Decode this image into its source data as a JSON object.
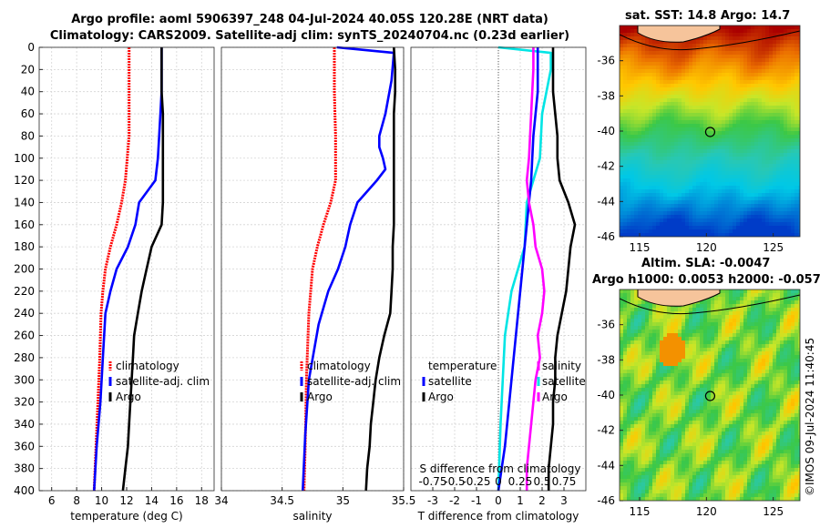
{
  "header": {
    "title_line1": "Argo profile: aoml 5906397_248 04-Jul-2024 40.05S 120.28E (NRT data)",
    "title_line2": "Climatology: CARS2009. Satellite-adj clim: synTS_20240704.nc (0.23d earlier)"
  },
  "colors": {
    "climatology": "#ff0000",
    "satellite": "#0000ff",
    "argo": "#000000",
    "s_climatology": "#ff00ff",
    "s_satellite": "#00e5e5"
  },
  "chart_data": [
    {
      "type": "line",
      "name": "temperature",
      "xlabel": "temperature (deg C)",
      "xlim": [
        5,
        19
      ],
      "ylim": [
        0,
        400
      ],
      "xticks": [
        6,
        8,
        10,
        12,
        14,
        16,
        18
      ],
      "yticks": [
        0,
        20,
        40,
        60,
        80,
        100,
        120,
        140,
        160,
        180,
        200,
        220,
        240,
        260,
        280,
        300,
        320,
        340,
        360,
        380,
        400
      ],
      "legend": [
        "climatology",
        "satellite-adj. clim",
        "Argo"
      ],
      "series": [
        {
          "name": "climatology",
          "color": "#ff0000",
          "depth": [
            0,
            40,
            80,
            120,
            140,
            160,
            180,
            200,
            220,
            240,
            280,
            320,
            360,
            400
          ],
          "values": [
            12.2,
            12.2,
            12.2,
            11.9,
            11.6,
            11.2,
            10.7,
            10.3,
            10.1,
            9.95,
            9.85,
            9.7,
            9.55,
            9.4
          ]
        },
        {
          "name": "satellite-adj. clim",
          "color": "#0000ff",
          "depth": [
            0,
            20,
            40,
            80,
            100,
            120,
            140,
            160,
            180,
            200,
            220,
            240,
            280,
            320,
            360,
            400
          ],
          "values": [
            14.8,
            14.8,
            14.8,
            14.6,
            14.5,
            14.3,
            13.0,
            12.7,
            12.1,
            11.2,
            10.7,
            10.3,
            10.1,
            9.9,
            9.6,
            9.4
          ]
        },
        {
          "name": "Argo",
          "color": "#000000",
          "depth": [
            0,
            20,
            40,
            60,
            80,
            100,
            120,
            140,
            160,
            180,
            200,
            220,
            240,
            260,
            280,
            300,
            320,
            340,
            360,
            380,
            400
          ],
          "values": [
            14.8,
            14.8,
            14.8,
            14.9,
            14.9,
            14.9,
            14.9,
            14.9,
            14.8,
            14.0,
            13.6,
            13.2,
            12.9,
            12.6,
            12.5,
            12.4,
            12.3,
            12.2,
            12.1,
            11.9,
            11.7
          ]
        }
      ]
    },
    {
      "type": "line",
      "name": "salinity",
      "xlabel": "salinity",
      "xlim": [
        34,
        35.5
      ],
      "ylim": [
        0,
        400
      ],
      "xticks": [
        34,
        34.5,
        35,
        35.5
      ],
      "xtick_labels": [
        "34",
        "34.5",
        "35",
        "35.5"
      ],
      "legend": [
        "climatology",
        "satellite-adj. clim",
        "Argo"
      ],
      "series": [
        {
          "name": "climatology",
          "color": "#ff0000",
          "depth": [
            0,
            40,
            80,
            120,
            140,
            160,
            180,
            200,
            240,
            300,
            360,
            400
          ],
          "values": [
            34.93,
            34.93,
            34.94,
            34.94,
            34.9,
            34.84,
            34.79,
            34.75,
            34.72,
            34.7,
            34.69,
            34.68
          ]
        },
        {
          "name": "satellite-adj. clim",
          "color": "#0000ff",
          "depth": [
            0,
            5,
            30,
            60,
            80,
            90,
            100,
            110,
            120,
            140,
            160,
            180,
            200,
            220,
            250,
            300,
            350,
            400
          ],
          "values": [
            34.95,
            35.42,
            35.4,
            35.35,
            35.3,
            35.3,
            35.33,
            35.35,
            35.28,
            35.12,
            35.06,
            35.02,
            34.96,
            34.88,
            34.8,
            34.72,
            34.69,
            34.67
          ]
        },
        {
          "name": "Argo",
          "color": "#000000",
          "depth": [
            0,
            20,
            40,
            60,
            80,
            100,
            120,
            140,
            160,
            180,
            200,
            220,
            240,
            260,
            280,
            300,
            320,
            340,
            360,
            380,
            400
          ],
          "values": [
            35.42,
            35.43,
            35.43,
            35.42,
            35.42,
            35.42,
            35.42,
            35.42,
            35.42,
            35.41,
            35.41,
            35.4,
            35.39,
            35.34,
            35.3,
            35.27,
            35.25,
            35.23,
            35.22,
            35.2,
            35.19
          ]
        }
      ]
    },
    {
      "type": "line",
      "name": "difference",
      "xlabel": "T difference from climatology",
      "xlabel_top": "S difference from climatology",
      "xlim": [
        -4,
        4
      ],
      "ylim": [
        0,
        400
      ],
      "xticks": [
        -3,
        -2,
        -1,
        0,
        1,
        2,
        3
      ],
      "xtick_labels": [
        "-3",
        "-2",
        "-1",
        "0",
        "1",
        "2",
        "3"
      ],
      "s_tick_labels": [
        "-0.75",
        "-0.5",
        "-0.25",
        "0",
        "0.25",
        "0.5",
        "0.75"
      ],
      "legend_t": [
        "temperature",
        "satellite",
        "Argo"
      ],
      "legend_s": [
        "salinity",
        "satellite",
        "Argo"
      ],
      "series": [
        {
          "name": "T satellite",
          "color": "#00e5e5",
          "depth": [
            0,
            5,
            20,
            60,
            100,
            140,
            180,
            220,
            260,
            300,
            340,
            400
          ],
          "values": [
            0.0,
            2.4,
            2.4,
            2.0,
            1.9,
            1.3,
            1.2,
            0.6,
            0.3,
            0.2,
            0.1,
            0.0
          ]
        },
        {
          "name": "T Argo",
          "color": "#000000",
          "depth": [
            0,
            20,
            40,
            60,
            80,
            100,
            120,
            140,
            160,
            180,
            200,
            220,
            240,
            260,
            280,
            300,
            320,
            340,
            360,
            380,
            400
          ],
          "values": [
            2.5,
            2.5,
            2.5,
            2.6,
            2.7,
            2.7,
            2.8,
            3.2,
            3.5,
            3.3,
            3.2,
            3.1,
            2.9,
            2.7,
            2.6,
            2.6,
            2.5,
            2.5,
            2.4,
            2.3,
            2.3
          ]
        },
        {
          "name": "S satellite",
          "color": "#0000ff",
          "depth": [
            0,
            40,
            80,
            120,
            160,
            200,
            240,
            300,
            360,
            400
          ],
          "values": [
            1.8,
            1.8,
            1.6,
            1.5,
            1.3,
            1.1,
            0.9,
            0.6,
            0.3,
            0.0
          ]
        },
        {
          "name": "S Argo",
          "color": "#ff00ff",
          "depth": [
            0,
            20,
            60,
            100,
            120,
            140,
            160,
            180,
            200,
            220,
            240,
            260,
            280,
            300,
            320,
            340,
            360,
            380,
            400
          ],
          "values": [
            1.6,
            1.6,
            1.5,
            1.4,
            1.3,
            1.4,
            1.6,
            1.7,
            2.0,
            2.1,
            2.0,
            1.8,
            1.9,
            1.7,
            1.6,
            1.5,
            1.4,
            1.3,
            1.3
          ]
        }
      ]
    },
    {
      "type": "heatmap",
      "name": "sst-map",
      "title": "sat. SST: 14.8 Argo: 14.7",
      "xlim": [
        113.5,
        127
      ],
      "ylim": [
        -46,
        -34
      ],
      "xticks": [
        115,
        120,
        125
      ],
      "yticks": [
        -36,
        -38,
        -40,
        -42,
        -44,
        -46
      ],
      "ytick_labels": [
        "-36",
        "-38",
        "-40",
        "-42",
        "-44",
        "-46"
      ],
      "argo_position": [
        120.28,
        -40.05
      ]
    },
    {
      "type": "heatmap",
      "name": "sla-map",
      "title_line1": "Altim. SLA: -0.0047",
      "title_line2": "Argo h1000: 0.0053 h2000: -0.057",
      "xlim": [
        113.5,
        127
      ],
      "ylim": [
        -46,
        -34
      ],
      "xticks": [
        115,
        120,
        125
      ],
      "yticks": [
        -36,
        -38,
        -40,
        -42,
        -44,
        -46
      ],
      "ytick_labels": [
        "-36",
        "-38",
        "-40",
        "-42",
        "-44",
        "-46"
      ],
      "argo_position": [
        120.28,
        -40.05
      ]
    }
  ],
  "stamp": "©IMOS 09-Jul-2024 11:40:45"
}
